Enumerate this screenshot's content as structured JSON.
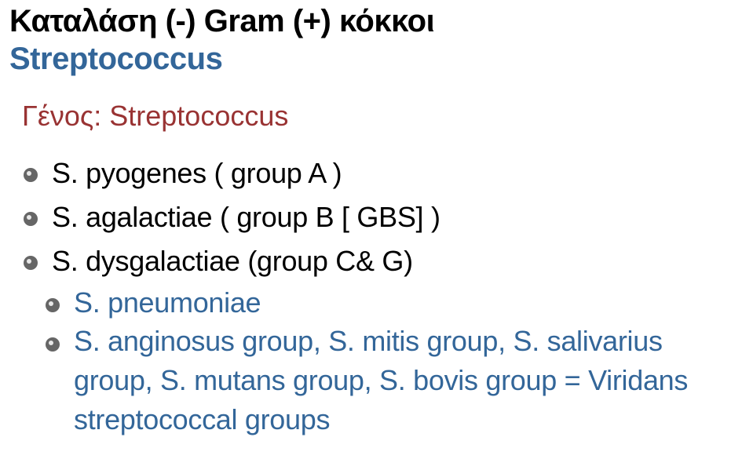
{
  "title": {
    "line1": "Καταλάση (-) Gram (+) κόκκοι",
    "line2": "Streptococcus",
    "line1_color": "#000000",
    "line2_color": "#336699"
  },
  "subtitle": {
    "text": "Γένος: Streptococcus",
    "color": "#993333"
  },
  "bullets": {
    "outer_color": "#666666",
    "items": [
      {
        "text": "S. pyogenes ( group A )",
        "level": 1,
        "color": "#000000"
      },
      {
        "text": "S. agalactiae ( group B [ GBS] )",
        "level": 1,
        "color": "#000000"
      },
      {
        "text": "S. dysgalactiae (group C& G)",
        "level": 1,
        "color": "#000000"
      },
      {
        "text": "S. pneumoniae",
        "level": 2,
        "color": "#336699"
      },
      {
        "text": "S. anginosus group, S. mitis group, S. salivarius group, S. mutans group, S. bovis group = Viridans streptococcal groups",
        "level": 2,
        "color": "#336699"
      }
    ]
  },
  "fonts": {
    "title_size_pt": 30,
    "body_size_pt": 27,
    "family": "Arial"
  },
  "background_color": "#ffffff"
}
